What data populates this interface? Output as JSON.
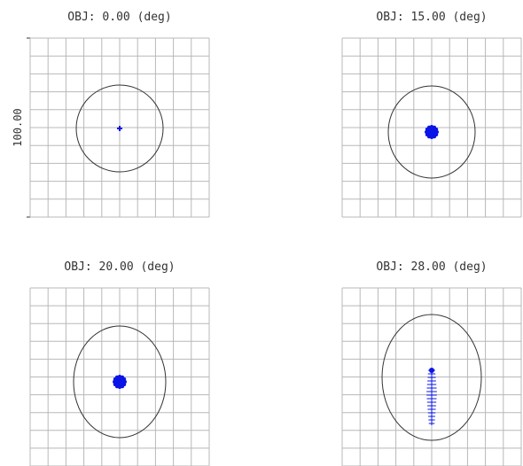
{
  "colors": {
    "grid": "#b8b8b8",
    "airy": "#333333",
    "spot": "#0a14e6",
    "text": "#333333"
  },
  "scale_bar": {
    "label": "100.00"
  },
  "chart_data": [
    {
      "type": "scatter",
      "title": "OBJ: 0.00 (deg)",
      "spot": {
        "shape": "cross",
        "size": "tiny"
      },
      "airy_disk": "circle"
    },
    {
      "type": "scatter",
      "title": "OBJ: 15.00 (deg)",
      "spot": {
        "shape": "blob",
        "size": "small"
      },
      "airy_disk": "circle"
    },
    {
      "type": "scatter",
      "title": "OBJ: 20.00 (deg)",
      "spot": {
        "shape": "blob",
        "size": "small"
      },
      "airy_disk": "circle"
    },
    {
      "type": "scatter",
      "title": "OBJ: 28.00 (deg)",
      "spot": {
        "shape": "vertical-streak",
        "size": "elongated"
      },
      "airy_disk": "ellipse"
    }
  ]
}
